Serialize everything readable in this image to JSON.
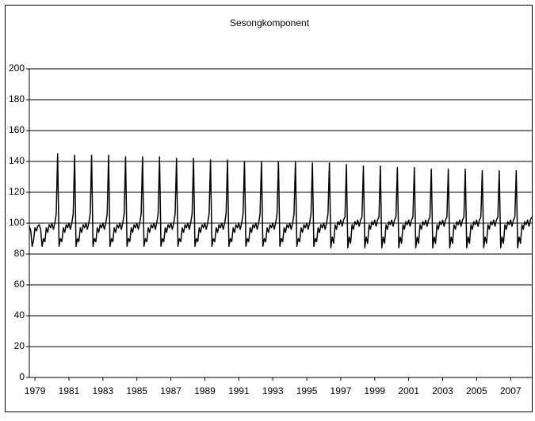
{
  "chart_data": {
    "type": "line",
    "title": "Sesongkomponent",
    "categories": [
      null,
      null,
      null,
      null,
      "1979",
      null,
      null,
      null,
      null,
      null,
      null,
      null,
      null,
      null,
      null,
      null,
      null,
      null,
      null,
      null,
      null,
      null,
      null,
      null,
      null,
      null,
      null,
      null,
      "1981",
      null,
      null,
      null,
      null,
      null,
      null,
      null,
      null,
      null,
      null,
      null,
      null,
      null,
      null,
      null,
      null,
      null,
      null,
      null,
      null,
      null,
      null,
      null,
      "1983",
      null,
      null,
      null,
      null,
      null,
      null,
      null,
      null,
      null,
      null,
      null,
      null,
      null,
      null,
      null,
      null,
      null,
      null,
      null,
      null,
      null,
      null,
      null,
      "1985",
      null,
      null,
      null,
      null,
      null,
      null,
      null,
      null,
      null,
      null,
      null,
      null,
      null,
      null,
      null,
      null,
      null,
      null,
      null,
      null,
      null,
      null,
      null,
      "1987",
      null,
      null,
      null,
      null,
      null,
      null,
      null,
      null,
      null,
      null,
      null,
      null,
      null,
      null,
      null,
      null,
      null,
      null,
      null,
      null,
      null,
      null,
      null,
      "1989",
      null,
      null,
      null,
      null,
      null,
      null,
      null,
      null,
      null,
      null,
      null,
      null,
      null,
      null,
      null,
      null,
      null,
      null,
      null,
      null,
      null,
      null,
      null,
      "1991",
      null,
      null,
      null,
      null,
      null,
      null,
      null,
      null,
      null,
      null,
      null,
      null,
      null,
      null,
      null,
      null,
      null,
      null,
      null,
      null,
      null,
      null,
      null,
      "1993",
      null,
      null,
      null,
      null,
      null,
      null,
      null,
      null,
      null,
      null,
      null,
      null,
      null,
      null,
      null,
      null,
      null,
      null,
      null,
      null,
      null,
      null,
      null,
      "1995",
      null,
      null,
      null,
      null,
      null,
      null,
      null,
      null,
      null,
      null,
      null,
      null,
      null,
      null,
      null,
      null,
      null,
      null,
      null,
      null,
      null,
      null,
      null,
      "1997",
      null,
      null,
      null,
      null,
      null,
      null,
      null,
      null,
      null,
      null,
      null,
      null,
      null,
      null,
      null,
      null,
      null,
      null,
      null,
      null,
      null,
      null,
      null,
      "1999",
      null,
      null,
      null,
      null,
      null,
      null,
      null,
      null,
      null,
      null,
      null,
      null,
      null,
      null,
      null,
      null,
      null,
      null,
      null,
      null,
      null,
      null,
      null,
      "2001",
      null,
      null,
      null,
      null,
      null,
      null,
      null,
      null,
      null,
      null,
      null,
      null,
      null,
      null,
      null,
      null,
      null,
      null,
      null,
      null,
      null,
      null,
      null,
      "2003",
      null,
      null,
      null,
      null,
      null,
      null,
      null,
      null,
      null,
      null,
      null,
      null,
      null,
      null,
      null,
      null,
      null,
      null,
      null,
      null,
      null,
      null,
      null,
      "2005",
      null,
      null,
      null,
      null,
      null,
      null,
      null,
      null,
      null,
      null,
      null,
      null,
      null,
      null,
      null,
      null,
      null,
      null,
      null,
      null,
      null,
      null,
      null,
      "2007",
      null,
      null,
      null,
      null,
      null,
      null,
      null,
      null,
      null,
      null,
      null,
      null,
      null,
      null,
      null
    ],
    "values": [
      98,
      95,
      85,
      89,
      97,
      95,
      98,
      99,
      96,
      85,
      90,
      88,
      97,
      94,
      99,
      97,
      100,
      96,
      100,
      106,
      145,
      85,
      90,
      88,
      97,
      94,
      99,
      97,
      100,
      96,
      100,
      106,
      144,
      85,
      90,
      88,
      97,
      94,
      99,
      97,
      100,
      96,
      100,
      106,
      144,
      85,
      90,
      88,
      97,
      94,
      99,
      97,
      100,
      96,
      100,
      106,
      144,
      85,
      90,
      88,
      97,
      94,
      99,
      97,
      100,
      96,
      100,
      106,
      143,
      85,
      90,
      88,
      97,
      94,
      99,
      97,
      100,
      96,
      100,
      106,
      143,
      85,
      90,
      88,
      97,
      94,
      99,
      97,
      100,
      96,
      100,
      106,
      143,
      85,
      90,
      88,
      97,
      94,
      99,
      97,
      100,
      96,
      100,
      106,
      142,
      85,
      90,
      88,
      97,
      94,
      99,
      97,
      100,
      96,
      100,
      106,
      142,
      85,
      90,
      88,
      97,
      94,
      99,
      97,
      100,
      96,
      100,
      106,
      141,
      85,
      90,
      88,
      97,
      94,
      99,
      97,
      100,
      96,
      100,
      106,
      141,
      85,
      90,
      88,
      97,
      94,
      99,
      97,
      100,
      96,
      100,
      106,
      140,
      85,
      90,
      88,
      97,
      94,
      99,
      97,
      100,
      96,
      100,
      106,
      140,
      85,
      90,
      88,
      97,
      94,
      99,
      97,
      100,
      96,
      100,
      106,
      140,
      85,
      90,
      88,
      97,
      94,
      99,
      97,
      100,
      96,
      100,
      106,
      140,
      85,
      90,
      88,
      97,
      94,
      99,
      97,
      100,
      96,
      100,
      106,
      139,
      85,
      90,
      88,
      97,
      94,
      99,
      97,
      100,
      96,
      100,
      106,
      139,
      84,
      91,
      87,
      99,
      96,
      101,
      99,
      102,
      98,
      102,
      104,
      138,
      84,
      91,
      87,
      99,
      96,
      101,
      99,
      102,
      98,
      102,
      104,
      137,
      84,
      91,
      87,
      99,
      96,
      101,
      99,
      102,
      98,
      102,
      104,
      137,
      84,
      91,
      87,
      99,
      96,
      101,
      99,
      102,
      98,
      102,
      104,
      136,
      84,
      91,
      87,
      99,
      96,
      101,
      99,
      102,
      98,
      102,
      104,
      136,
      84,
      91,
      87,
      99,
      96,
      101,
      99,
      102,
      98,
      102,
      104,
      135,
      84,
      91,
      87,
      99,
      96,
      101,
      99,
      102,
      98,
      102,
      104,
      135,
      84,
      91,
      87,
      99,
      96,
      101,
      99,
      102,
      98,
      102,
      104,
      135,
      84,
      91,
      87,
      99,
      96,
      101,
      99,
      102,
      98,
      102,
      104,
      134,
      84,
      91,
      87,
      99,
      96,
      101,
      99,
      102,
      98,
      102,
      104,
      134,
      84,
      91,
      87,
      99,
      96,
      101,
      99,
      102,
      98,
      102,
      104,
      134,
      84,
      91,
      87,
      99,
      96,
      101,
      99,
      102,
      98,
      102,
      104
    ],
    "color": "#000000",
    "ylim": [
      0,
      200
    ],
    "yticks": [
      0,
      20,
      40,
      60,
      80,
      100,
      120,
      140,
      160,
      180,
      200
    ],
    "grid": true
  }
}
